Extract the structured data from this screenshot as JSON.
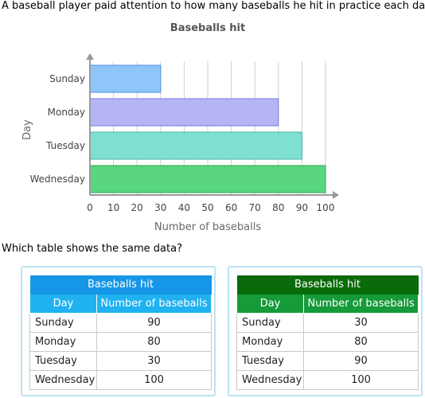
{
  "question": "A baseball player paid attention to how many baseballs he hit in practice each day.",
  "prompt": "Which table shows the same data?",
  "colors": {
    "axis": "#9a9a9a",
    "grid": "#cfcfcf",
    "text": "#444444",
    "title": "#555555",
    "bars": [
      "#8ec5fb",
      "#b5b5f5",
      "#7fe0d2",
      "#5ad67f"
    ],
    "bar_strokes": [
      "#4d90e0",
      "#7878e0",
      "#3cb8a8",
      "#2ea653"
    ],
    "choice_a_caption": "#1596e6",
    "choice_a_header": "#20b2f0",
    "choice_b_caption": "#0a6b0a",
    "choice_b_header": "#169a3a",
    "choice_border": "#bce3f5"
  },
  "chart_data": {
    "type": "bar",
    "orientation": "horizontal",
    "title": "Baseballs hit",
    "xlabel": "Number of baseballs",
    "ylabel": "Day",
    "categories": [
      "Sunday",
      "Monday",
      "Tuesday",
      "Wednesday"
    ],
    "values": [
      30,
      80,
      90,
      100
    ],
    "xlim": [
      0,
      100
    ],
    "xticks": [
      0,
      10,
      20,
      30,
      40,
      50,
      60,
      70,
      80,
      90,
      100
    ],
    "grid": true
  },
  "choices": [
    {
      "caption": "Baseballs hit",
      "headers": [
        "Day",
        "Number of baseballs"
      ],
      "rows": [
        [
          "Sunday",
          "90"
        ],
        [
          "Monday",
          "80"
        ],
        [
          "Tuesday",
          "30"
        ],
        [
          "Wednesday",
          "100"
        ]
      ]
    },
    {
      "caption": "Baseballs hit",
      "headers": [
        "Day",
        "Number of baseballs"
      ],
      "rows": [
        [
          "Sunday",
          "30"
        ],
        [
          "Monday",
          "80"
        ],
        [
          "Tuesday",
          "90"
        ],
        [
          "Wednesday",
          "100"
        ]
      ]
    }
  ]
}
